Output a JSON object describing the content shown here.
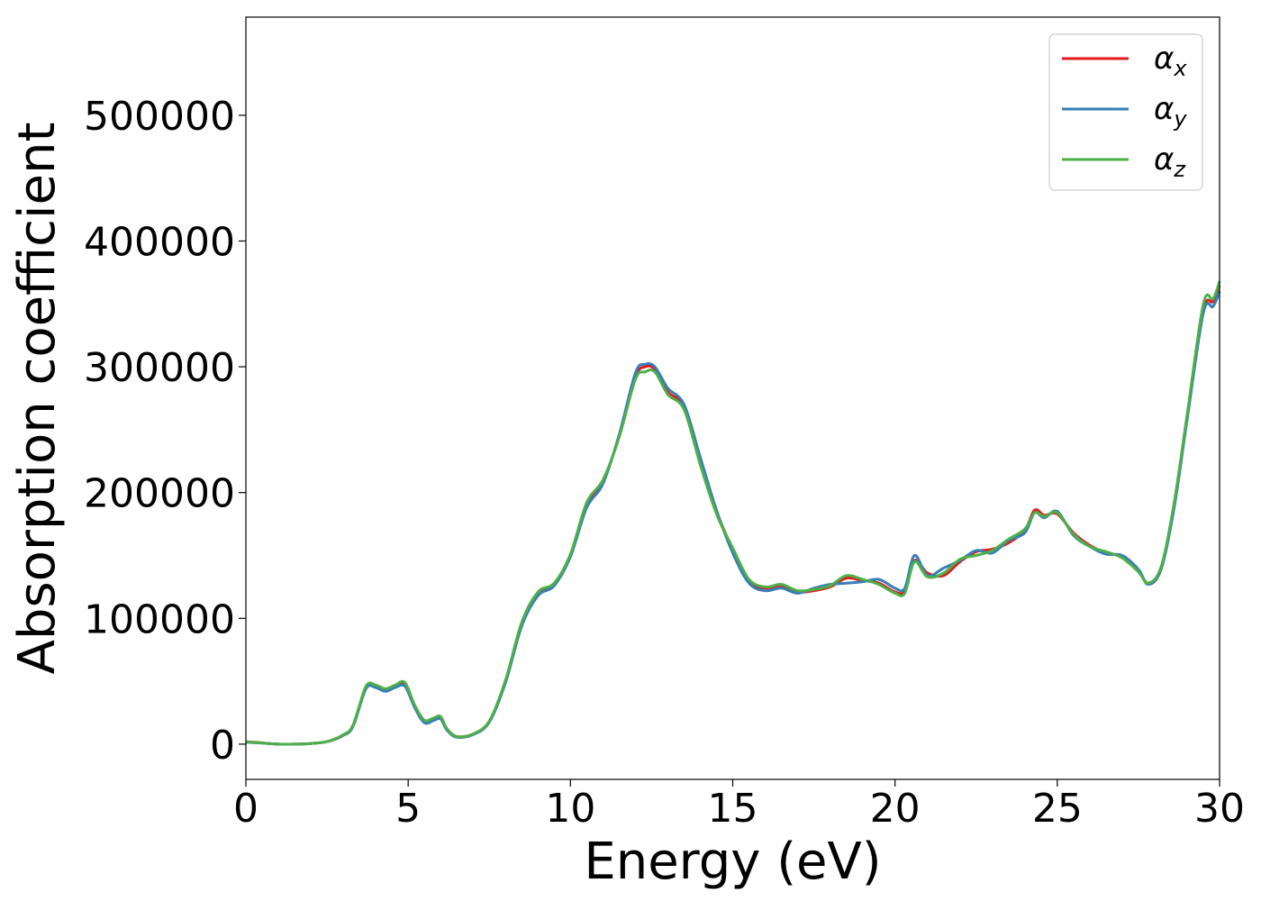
{
  "chart_data": {
    "type": "line",
    "xlabel": "Energy (eV)",
    "ylabel": "Absorption coefficient",
    "xlim": [
      0,
      30
    ],
    "ylim": [
      -28000,
      578000
    ],
    "x_ticks": [
      0,
      5,
      10,
      15,
      20,
      25,
      30
    ],
    "y_ticks": [
      0,
      100000,
      200000,
      300000,
      400000,
      500000
    ],
    "grid": false,
    "legend_position": "top-right",
    "x": [
      0,
      0.5,
      1,
      1.5,
      2,
      2.5,
      3,
      3.3,
      3.7,
      4,
      4.3,
      4.6,
      4.9,
      5.2,
      5.5,
      5.8,
      6,
      6.2,
      6.5,
      7,
      7.5,
      8,
      8.5,
      9,
      9.5,
      10,
      10.5,
      11,
      11.5,
      12,
      12.3,
      12.6,
      13,
      13.5,
      14,
      14.5,
      15,
      15.5,
      16,
      16.5,
      17,
      17.5,
      18,
      18.5,
      19,
      19.5,
      20,
      20.3,
      20.6,
      21,
      21.5,
      22,
      22.5,
      23,
      23.5,
      24,
      24.3,
      24.6,
      25,
      25.5,
      26,
      26.5,
      27,
      27.5,
      27.8,
      28.2,
      28.6,
      29,
      29.5,
      29.8,
      30
    ],
    "series": [
      {
        "name": "α",
        "sub": "x",
        "color": "#e41a1c",
        "values": [
          2000,
          1000,
          0,
          0,
          500,
          2000,
          7000,
          15000,
          45000,
          46000,
          43000,
          46000,
          48000,
          30000,
          18000,
          20000,
          21000,
          12000,
          6000,
          8000,
          18000,
          50000,
          96000,
          120000,
          127000,
          150000,
          190000,
          208000,
          245000,
          292000,
          300000,
          298000,
          280000,
          268000,
          225000,
          185000,
          155000,
          130000,
          124000,
          126000,
          121000,
          122000,
          125000,
          132000,
          130000,
          128000,
          121000,
          122000,
          146000,
          136000,
          134000,
          145000,
          153000,
          155000,
          160000,
          170000,
          186000,
          182000,
          183000,
          168000,
          158000,
          152000,
          149000,
          138000,
          128000,
          140000,
          190000,
          260000,
          345000,
          352000,
          365000
        ]
      },
      {
        "name": "α",
        "sub": "y",
        "color": "#377eb8",
        "values": [
          1500,
          800,
          0,
          0,
          500,
          2000,
          7000,
          14000,
          44000,
          45000,
          42000,
          45000,
          46000,
          29000,
          17000,
          19000,
          20000,
          11000,
          5500,
          7500,
          17500,
          49000,
          94000,
          118000,
          126000,
          149000,
          188000,
          207000,
          246000,
          295000,
          302000,
          300000,
          283000,
          270000,
          228000,
          186000,
          152000,
          128000,
          122000,
          124000,
          120000,
          124000,
          127000,
          128000,
          129000,
          131000,
          124000,
          124000,
          150000,
          134000,
          140000,
          146000,
          154000,
          152000,
          162000,
          168000,
          184000,
          180000,
          185000,
          166000,
          157000,
          151000,
          150000,
          139000,
          127000,
          139000,
          188000,
          258000,
          343000,
          348000,
          360000
        ]
      },
      {
        "name": "α",
        "sub": "z",
        "color": "#4daf4a",
        "values": [
          1800,
          900,
          0,
          0,
          500,
          2000,
          7500,
          15000,
          46000,
          47000,
          44000,
          47000,
          49000,
          31000,
          19000,
          21000,
          22000,
          12000,
          6000,
          8000,
          18500,
          51000,
          97000,
          121000,
          128000,
          151000,
          192000,
          210000,
          244000,
          290000,
          296000,
          296000,
          278000,
          266000,
          222000,
          183000,
          156000,
          131000,
          125000,
          127000,
          122000,
          123000,
          126000,
          134000,
          131000,
          127000,
          120000,
          120000,
          145000,
          133000,
          136000,
          147000,
          150000,
          154000,
          163000,
          171000,
          184000,
          181000,
          184000,
          167000,
          157000,
          153000,
          148000,
          137000,
          128000,
          141000,
          192000,
          262000,
          350000,
          354000,
          368000
        ]
      }
    ]
  }
}
